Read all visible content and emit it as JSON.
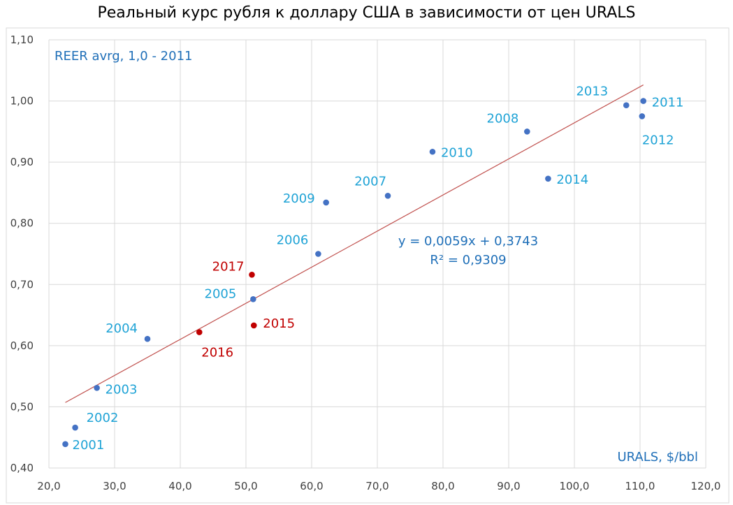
{
  "chart_data": {
    "type": "scatter",
    "title": "Реальный курс рубля к доллару США в зависимости от цен URALS",
    "ylabel": "REER avrg, 1,0 - 2011",
    "xlabel": "URALS, $/bbl",
    "xlim": [
      20,
      120
    ],
    "ylim": [
      0.4,
      1.1
    ],
    "grid": "vertical and horizontal",
    "x_ticks": [
      "20,0",
      "30,0",
      "40,0",
      "50,0",
      "60,0",
      "70,0",
      "80,0",
      "90,0",
      "100,0",
      "110,0",
      "120,0"
    ],
    "y_ticks": [
      "0,40",
      "0,50",
      "0,60",
      "0,70",
      "0,80",
      "0,90",
      "1,00",
      "1,10"
    ],
    "series": [
      {
        "color": "#4472C4",
        "label_color": "#1FA3D6",
        "points": [
          {
            "label": "2001",
            "x": 22.5,
            "y": 0.439
          },
          {
            "label": "2002",
            "x": 24.0,
            "y": 0.466
          },
          {
            "label": "2003",
            "x": 27.3,
            "y": 0.531
          },
          {
            "label": "2004",
            "x": 35.0,
            "y": 0.611
          },
          {
            "label": "2005",
            "x": 51.1,
            "y": 0.676
          },
          {
            "label": "2006",
            "x": 61.0,
            "y": 0.75
          },
          {
            "label": "2007",
            "x": 71.6,
            "y": 0.845
          },
          {
            "label": "2008",
            "x": 92.8,
            "y": 0.95
          },
          {
            "label": "2009",
            "x": 62.2,
            "y": 0.834
          },
          {
            "label": "2010",
            "x": 78.4,
            "y": 0.917
          },
          {
            "label": "2011",
            "x": 110.5,
            "y": 1.0
          },
          {
            "label": "2012",
            "x": 110.3,
            "y": 0.975
          },
          {
            "label": "2013",
            "x": 107.9,
            "y": 0.993
          },
          {
            "label": "2014",
            "x": 96.0,
            "y": 0.873
          }
        ]
      },
      {
        "color": "#C00000",
        "label_color": "#C00000",
        "points": [
          {
            "label": "2015",
            "x": 51.2,
            "y": 0.633
          },
          {
            "label": "2016",
            "x": 42.9,
            "y": 0.622
          },
          {
            "label": "2017",
            "x": 50.9,
            "y": 0.716
          }
        ]
      }
    ],
    "trendline": {
      "type": "linear",
      "slope": 0.0059,
      "intercept": 0.3743,
      "x_range": [
        22.5,
        110.5
      ],
      "color": "#C0504D",
      "equation": "y = 0,0059x + 0,3743",
      "r2": "R² = 0,9309"
    }
  }
}
